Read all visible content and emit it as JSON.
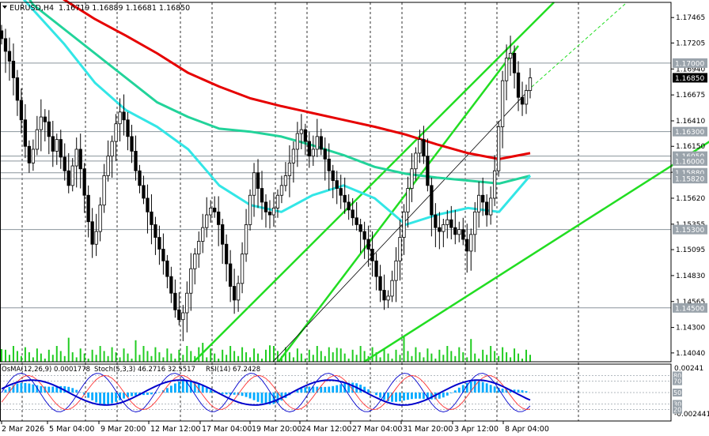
{
  "header": {
    "symbol": "EURUSD,H4",
    "ohlc": "1.16719 1.16889 1.16681 1.16850"
  },
  "indicator_header": {
    "osma": "OsMA(12,26,9) 0.0001778",
    "stoch": "Stoch(5,3,3) 46.2716 32.5517",
    "rsi": "RSI(14) 67.2428"
  },
  "price_scale": {
    "ticks": [
      "1.17465",
      "1.17205",
      "1.16940",
      "1.16675",
      "1.16410",
      "1.16150",
      "1.15885",
      "1.15620",
      "1.15355",
      "1.15095",
      "1.14830",
      "1.14565",
      "1.14300",
      "1.14040"
    ],
    "current_price": "1.16850",
    "level_labels": [
      "1.17000",
      "1.16300",
      "1.16050",
      "1.16000",
      "1.15880",
      "1.15820",
      "1.15300",
      "1.14500"
    ]
  },
  "indicator_scale": {
    "ticks": [
      "0.00241",
      "-0.002441"
    ],
    "levels": [
      "80",
      "70",
      "50",
      "30",
      "20"
    ]
  },
  "time_scale": {
    "labels": [
      "2 Mar 2026",
      "5 Mar 04:00",
      "9 Mar 20:00",
      "12 Mar 12:00",
      "17 Mar 04:00",
      "19 Mar 20:00",
      "24 Mar 12:00",
      "27 Mar 04:00",
      "31 Mar 20:00",
      "3 Apr 12:00",
      "8 Apr 04:00"
    ]
  },
  "colors": {
    "background": "#ffffff",
    "candles": "#000000",
    "ma_red": "#e60000",
    "ma_green": "#22d39a",
    "ma_cyan": "#33e6e6",
    "channel": "#22dd22",
    "volume": "#22cc22",
    "osma_hist": "#00aaff",
    "stoch_main": "#0000cc",
    "stoch_signal": "#ff3333",
    "rsi": "#0000cc",
    "current_price_bg": "#000000",
    "level_label_bg": "#9aa3ab"
  },
  "chart_data": {
    "type": "candlestick",
    "symbol": "EURUSD",
    "timeframe": "H4",
    "ylim": [
      1.1395,
      1.1762
    ],
    "current_price": 1.1685,
    "horizontal_levels": [
      1.17,
      1.163,
      1.1605,
      1.16,
      1.1588,
      1.1582,
      1.153,
      1.145
    ],
    "candles_close": [
      1.1725,
      1.1712,
      1.1702,
      1.1685,
      1.1662,
      1.1642,
      1.1615,
      1.1598,
      1.1612,
      1.1632,
      1.1645,
      1.164,
      1.1625,
      1.161,
      1.1622,
      1.1604,
      1.159,
      1.1575,
      1.1595,
      1.1612,
      1.1592,
      1.1565,
      1.1538,
      1.1515,
      1.1528,
      1.1555,
      1.1585,
      1.1605,
      1.162,
      1.1638,
      1.165,
      1.1642,
      1.1625,
      1.161,
      1.159,
      1.1575,
      1.1562,
      1.1548,
      1.1535,
      1.1522,
      1.151,
      1.1498,
      1.1482,
      1.1465,
      1.1448,
      1.1438,
      1.1445,
      1.1465,
      1.149,
      1.1505,
      1.1518,
      1.1532,
      1.1545,
      1.1552,
      1.1548,
      1.1535,
      1.1515,
      1.1495,
      1.1472,
      1.1458,
      1.1475,
      1.1505,
      1.1535,
      1.1565,
      1.1588,
      1.1572,
      1.1558,
      1.1548,
      1.1545,
      1.1552,
      1.1565,
      1.1575,
      1.1585,
      1.1598,
      1.1612,
      1.1628,
      1.1632,
      1.162,
      1.1605,
      1.1612,
      1.1625,
      1.1612,
      1.1602,
      1.159,
      1.158,
      1.1572,
      1.1565,
      1.1558,
      1.155,
      1.1542,
      1.1535,
      1.1528,
      1.152,
      1.151,
      1.1498,
      1.1482,
      1.1468,
      1.1458,
      1.1462,
      1.1478,
      1.1498,
      1.1522,
      1.1548,
      1.1572,
      1.1592,
      1.1608,
      1.1622,
      1.1605,
      1.1575,
      1.1545,
      1.1532,
      1.1528,
      1.1535,
      1.154,
      1.1532,
      1.1525,
      1.153,
      1.152,
      1.1508,
      1.1525,
      1.1548,
      1.1565,
      1.1558,
      1.1545,
      1.1562,
      1.159,
      1.1635,
      1.1682,
      1.1705,
      1.171,
      1.169,
      1.1665,
      1.1658,
      1.1672,
      1.1685
    ],
    "moving_averages": [
      {
        "color": "red",
        "values": [
          1.182,
          1.179,
          1.1765,
          1.1745,
          1.1728,
          1.171,
          1.169,
          1.1676,
          1.1664,
          1.1656,
          1.1649,
          1.1642,
          1.1635,
          1.1627,
          1.1617,
          1.1608,
          1.1602,
          1.1608
        ]
      },
      {
        "color": "green",
        "values": [
          1.181,
          1.176,
          1.1735,
          1.171,
          1.1685,
          1.166,
          1.1645,
          1.1633,
          1.163,
          1.1625,
          1.1616,
          1.1606,
          1.1594,
          1.1587,
          1.1583,
          1.158,
          1.1577,
          1.1585
        ]
      },
      {
        "color": "cyan",
        "values": [
          1.179,
          1.1755,
          1.172,
          1.168,
          1.1652,
          1.1635,
          1.1612,
          1.1575,
          1.1555,
          1.1548,
          1.1565,
          1.1575,
          1.1562,
          1.1535,
          1.1545,
          1.1552,
          1.1548,
          1.1585
        ]
      }
    ],
    "channel_lines": [
      {
        "points": [
          [
            1.14,
            0
          ],
          [
            1.1765,
            1
          ]
        ]
      },
      {
        "points": [
          [
            1.14,
            0
          ],
          [
            1.1765,
            1
          ]
        ]
      }
    ],
    "oscillators": {
      "osma": 0.0001778,
      "osma_range": [
        -0.002441,
        0.00241
      ],
      "stoch_main": 46.2716,
      "stoch_signal": 32.5517,
      "rsi": 67.2428,
      "levels": [
        80,
        70,
        50,
        30,
        20
      ]
    }
  }
}
